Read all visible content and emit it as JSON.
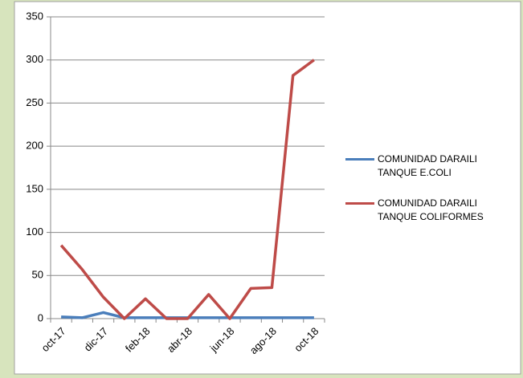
{
  "chart_data": {
    "type": "line",
    "categories": [
      "oct-17",
      null,
      "dic-17",
      null,
      "feb-18",
      null,
      "abr-18",
      null,
      "jun-18",
      null,
      "ago-18",
      null,
      "oct-18"
    ],
    "series": [
      {
        "name": "COMUNIDAD DARAILI TANQUE  E.COLI",
        "color": "#4a7ebb",
        "values": [
          2,
          1,
          7,
          1,
          1,
          1,
          1,
          1,
          1,
          1,
          1,
          1,
          1
        ]
      },
      {
        "name": "COMUNIDAD DARAILI TANQUE  COLIFORMES",
        "color": "#be4b48",
        "values": [
          85,
          57,
          25,
          0,
          23,
          0,
          0,
          28,
          0,
          35,
          36,
          282,
          300
        ]
      }
    ],
    "ylim": [
      0,
      350
    ],
    "yticks": [
      0,
      50,
      100,
      150,
      200,
      250,
      300,
      350
    ],
    "grid": true,
    "legend": "right"
  }
}
